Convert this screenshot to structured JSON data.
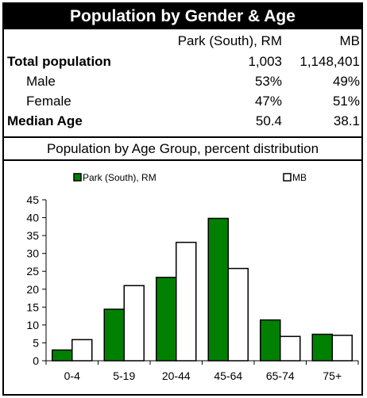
{
  "table": {
    "title": "Population by Gender & Age",
    "col1_header": "Park (South), RM",
    "col2_header": "MB",
    "rows": [
      {
        "label": "Total population",
        "c1": "1,003",
        "c2": "1,148,401"
      },
      {
        "label": "Male",
        "c1": "53%",
        "c2": "49%"
      },
      {
        "label": "Female",
        "c1": "47%",
        "c2": "51%"
      },
      {
        "label": "Median Age",
        "c1": "50.4",
        "c2": "38.1"
      }
    ],
    "chart_heading": "Population by Age Group, percent distribution"
  },
  "chart_data": {
    "type": "bar",
    "categories": [
      "0-4",
      "5-19",
      "20-44",
      "45-64",
      "65-74",
      "75+"
    ],
    "series": [
      {
        "name": "Park (South), RM",
        "values": [
          3.0,
          14.4,
          23.3,
          39.8,
          11.4,
          7.4
        ],
        "color": "#008000"
      },
      {
        "name": "MB",
        "values": [
          5.9,
          21.0,
          33.1,
          25.8,
          6.8,
          7.1
        ],
        "color": "#ffffff"
      }
    ],
    "ylim": [
      0,
      45
    ],
    "yticks": [
      "0",
      "5",
      "10",
      "15",
      "20",
      "25",
      "30",
      "35",
      "40",
      "45"
    ],
    "grid": false,
    "legend_position": "top"
  }
}
